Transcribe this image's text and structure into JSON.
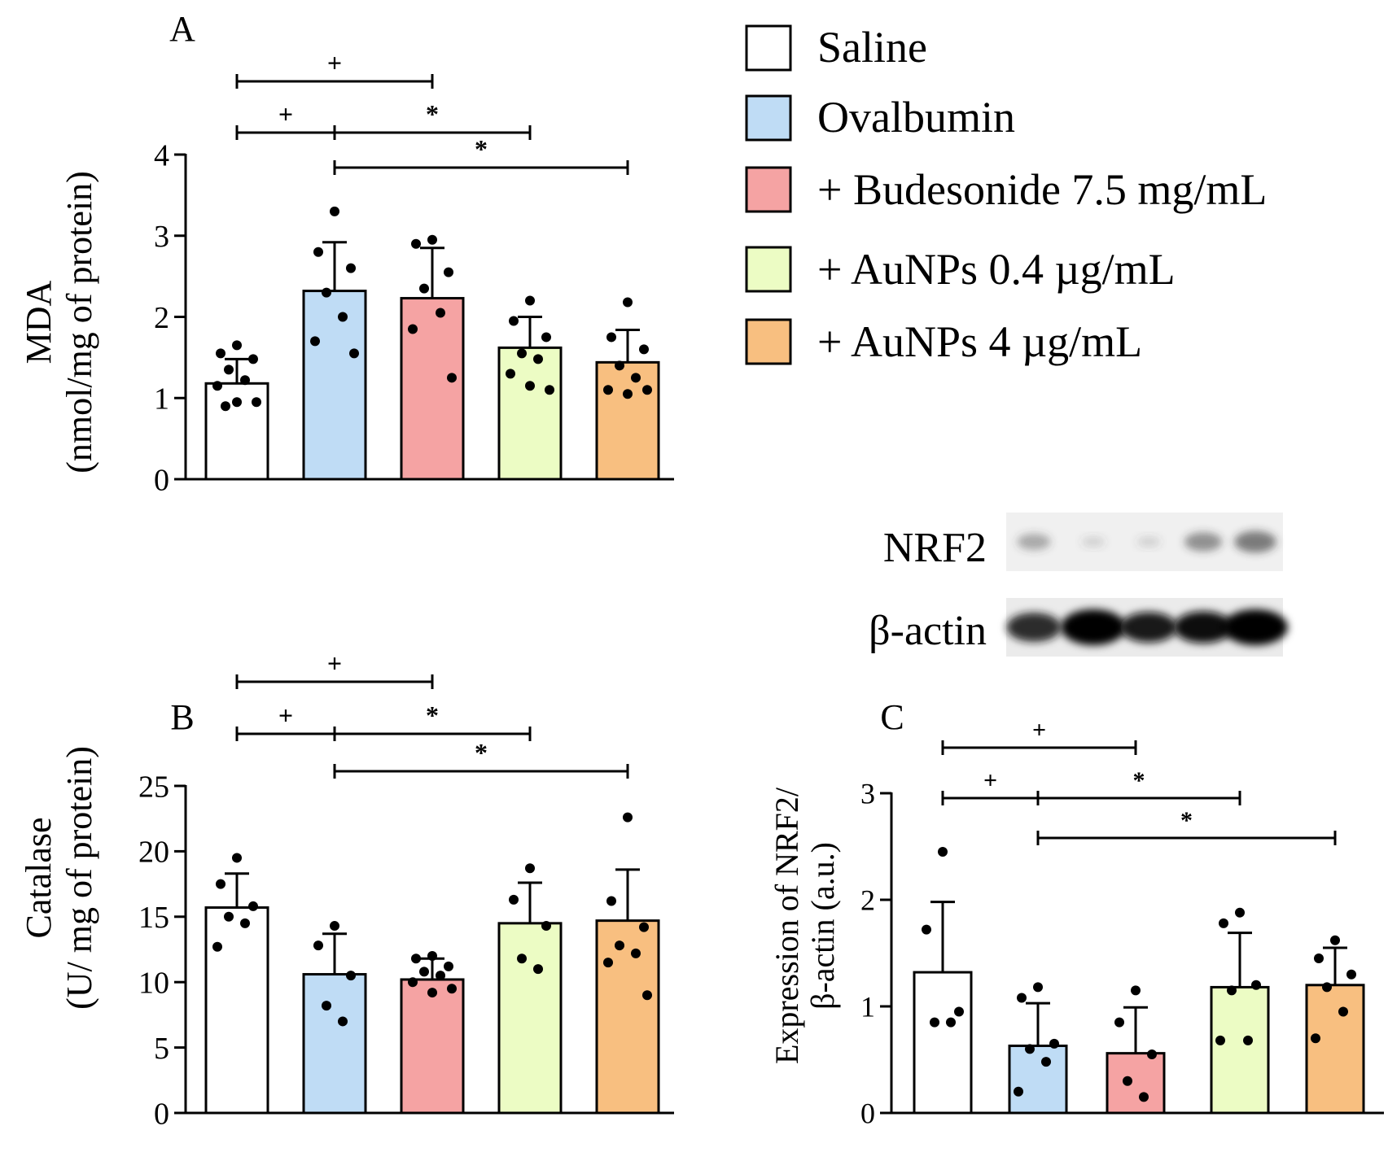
{
  "legend": {
    "items": [
      {
        "label": "Saline",
        "color": "#ffffff"
      },
      {
        "label": "Ovalbumin",
        "color": "#bfdcf5"
      },
      {
        "label": "+ Budesonide 7.5 mg/mL",
        "color": "#f5a3a3"
      },
      {
        "label": "+ AuNPs 0.4 µg/mL",
        "color": "#ecfcc4"
      },
      {
        "label": "+ AuNPs 4 µg/mL",
        "color": "#f8bf80"
      }
    ]
  },
  "blot": {
    "rows": [
      {
        "label": "NRF2",
        "intensity": [
          0.25,
          0.03,
          0.03,
          0.35,
          0.45
        ]
      },
      {
        "label": "β-actin",
        "intensity": [
          0.75,
          1.0,
          0.8,
          0.85,
          1.0
        ]
      }
    ]
  },
  "chart_data": [
    {
      "panel": "A",
      "type": "bar",
      "title": "A",
      "ylabel_lines": [
        "MDA",
        "(nmol/mg of protein)"
      ],
      "ylim": [
        0,
        4
      ],
      "yticks": [
        0,
        1,
        2,
        3,
        4
      ],
      "categories": [
        "Saline",
        "Ovalbumin",
        "+ Budesonide 7.5 mg/mL",
        "+ AuNPs 0.4 µg/mL",
        "+ AuNPs 4 µg/mL"
      ],
      "values": [
        1.18,
        2.32,
        2.23,
        1.62,
        1.44
      ],
      "sd": [
        0.3,
        0.6,
        0.62,
        0.38,
        0.4
      ],
      "points": [
        [
          1.65,
          1.55,
          1.48,
          1.35,
          1.22,
          1.15,
          0.95,
          0.95,
          0.9
        ],
        [
          3.3,
          2.8,
          2.6,
          2.3,
          2.0,
          1.7,
          1.55
        ],
        [
          2.95,
          2.9,
          2.55,
          2.35,
          2.05,
          1.85,
          1.25
        ],
        [
          2.2,
          1.95,
          1.75,
          1.55,
          1.48,
          1.3,
          1.1,
          1.15
        ],
        [
          2.18,
          1.75,
          1.6,
          1.4,
          1.25,
          1.1,
          1.1,
          1.05
        ]
      ],
      "significance": [
        {
          "from": 0,
          "to": 2,
          "symbol": "+"
        },
        {
          "from": 0,
          "to": 1,
          "symbol": "+"
        },
        {
          "from": 1,
          "to": 3,
          "symbol": "*"
        },
        {
          "from": 1,
          "to": 4,
          "symbol": "*"
        }
      ]
    },
    {
      "panel": "B",
      "type": "bar",
      "title": "B",
      "ylabel_lines": [
        "Catalase",
        "(U/ mg of protein)"
      ],
      "ylim": [
        0,
        25
      ],
      "yticks": [
        0,
        5,
        10,
        15,
        20,
        25
      ],
      "categories": [
        "Saline",
        "Ovalbumin",
        "+ Budesonide 7.5 mg/mL",
        "+ AuNPs 0.4 µg/mL",
        "+ AuNPs 4 µg/mL"
      ],
      "values": [
        15.7,
        10.6,
        10.2,
        14.5,
        14.7
      ],
      "sd": [
        2.6,
        3.1,
        1.6,
        3.1,
        3.9
      ],
      "points": [
        [
          19.5,
          17.5,
          15.8,
          15.0,
          14.5,
          12.7
        ],
        [
          14.3,
          12.8,
          10.5,
          8.2,
          7.0
        ],
        [
          12.0,
          11.8,
          11.2,
          10.8,
          10.5,
          10.0,
          9.5,
          9.2
        ],
        [
          18.7,
          16.3,
          14.3,
          11.8,
          11.0
        ],
        [
          22.6,
          16.2,
          14.2,
          12.8,
          12.2,
          11.5,
          9.0
        ]
      ],
      "significance": [
        {
          "from": 0,
          "to": 2,
          "symbol": "+"
        },
        {
          "from": 0,
          "to": 1,
          "symbol": "+"
        },
        {
          "from": 1,
          "to": 3,
          "symbol": "*"
        },
        {
          "from": 1,
          "to": 4,
          "symbol": "*"
        }
      ]
    },
    {
      "panel": "C",
      "type": "bar",
      "title": "C",
      "ylabel_lines": [
        "Expression of NRF2/",
        "β-actin (a.u.)"
      ],
      "ylim": [
        0,
        3
      ],
      "yticks": [
        0,
        1,
        2,
        3
      ],
      "categories": [
        "Saline",
        "Ovalbumin",
        "+ Budesonide 7.5 mg/mL",
        "+ AuNPs 0.4 µg/mL",
        "+ AuNPs 4 µg/mL"
      ],
      "values": [
        1.32,
        0.63,
        0.56,
        1.18,
        1.2
      ],
      "sd": [
        0.66,
        0.4,
        0.43,
        0.51,
        0.35
      ],
      "points": [
        [
          2.45,
          1.72,
          0.95,
          0.85,
          0.85
        ],
        [
          1.18,
          1.08,
          0.65,
          0.6,
          0.48,
          0.2
        ],
        [
          1.15,
          0.85,
          0.55,
          0.3,
          0.15
        ],
        [
          1.88,
          1.78,
          1.2,
          1.15,
          0.68,
          0.68
        ],
        [
          1.62,
          1.45,
          1.3,
          1.18,
          0.95,
          0.7
        ]
      ],
      "significance": [
        {
          "from": 0,
          "to": 2,
          "symbol": "+"
        },
        {
          "from": 0,
          "to": 1,
          "symbol": "+"
        },
        {
          "from": 1,
          "to": 3,
          "symbol": "*"
        },
        {
          "from": 1,
          "to": 4,
          "symbol": "*"
        }
      ]
    }
  ]
}
